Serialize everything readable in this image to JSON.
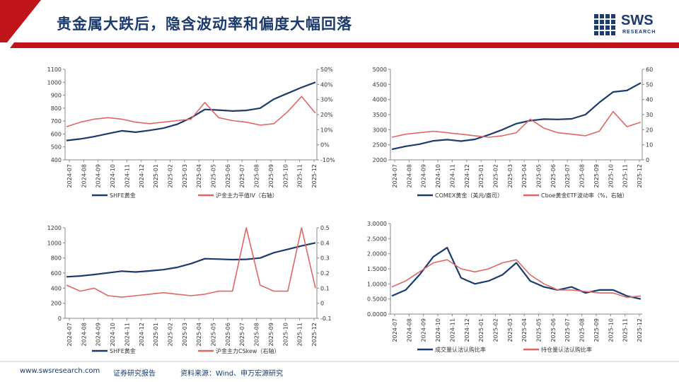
{
  "header": {
    "title": "贵金属大跌后，隐含波动率和偏度大幅回落",
    "logo_text": "SWS",
    "logo_subtext": "RESEARCH",
    "colors": {
      "navy": "#1b3a6e",
      "red": "#c0141b"
    }
  },
  "footer": {
    "website": "www.swsresearch.com",
    "label": "证券研究报告",
    "source": "资料来源：Wind、申万宏源研究"
  },
  "chart_data": [
    {
      "type": "line",
      "x_ticks": [
        "2024-07",
        "2024-08",
        "2024-09",
        "2024-10",
        "2024-11",
        "2024-12",
        "2025-01",
        "2025-02",
        "2025-03",
        "2025-04",
        "2025-05",
        "2025-06",
        "2025-07",
        "2025-08",
        "2025-09",
        "2025-10",
        "2025-11",
        "2025-12"
      ],
      "left_axis": {
        "ticks": [
          "400",
          "500",
          "600",
          "700",
          "800",
          "900",
          "1000",
          "1100"
        ],
        "range": [
          400,
          1100
        ]
      },
      "right_axis": {
        "ticks": [
          "-10%",
          "0%",
          "10%",
          "20%",
          "30%",
          "40%",
          "50%"
        ],
        "range": [
          -10,
          50
        ]
      },
      "series": [
        {
          "name": "SHFE黄金",
          "axis": "left",
          "color": "#1b3a6e",
          "values": [
            550,
            562,
            580,
            603,
            625,
            614,
            628,
            645,
            675,
            725,
            790,
            785,
            778,
            782,
            800,
            870,
            915,
            960,
            1000
          ]
        },
        {
          "name": "沪金主力平值IV（右轴）",
          "axis": "right",
          "color": "#e06666",
          "values": [
            12,
            15,
            17,
            18,
            17,
            15,
            14,
            15,
            16,
            17,
            28,
            18,
            16,
            15,
            13,
            14,
            22,
            32,
            21
          ]
        }
      ]
    },
    {
      "type": "line",
      "x_ticks": [
        "2024-07",
        "2024-08",
        "2024-09",
        "2024-10",
        "2024-11",
        "2024-12",
        "2025-01",
        "2025-02",
        "2025-03",
        "2025-04",
        "2025-05",
        "2025-06",
        "2025-07",
        "2025-08",
        "2025-09",
        "2025-10",
        "2025-11",
        "2025-12"
      ],
      "left_axis": {
        "ticks": [
          "2000",
          "2500",
          "3000",
          "3500",
          "4000",
          "4500",
          "5000"
        ],
        "range": [
          2000,
          5000
        ]
      },
      "right_axis": {
        "ticks": [
          "0",
          "10",
          "20",
          "30",
          "40",
          "50",
          "60"
        ],
        "range": [
          0,
          60
        ]
      },
      "series": [
        {
          "name": "COMEX黄金（美元/盎司）",
          "axis": "left",
          "color": "#1b3a6e",
          "values": [
            2350,
            2450,
            2520,
            2630,
            2670,
            2620,
            2680,
            2830,
            3000,
            3200,
            3300,
            3350,
            3340,
            3360,
            3500,
            3900,
            4250,
            4300,
            4550
          ]
        },
        {
          "name": "Cboe黄金ETF波动率（%，右轴）",
          "axis": "right",
          "color": "#e06666",
          "values": [
            15,
            17,
            18,
            19,
            18,
            17,
            16,
            15,
            16,
            18,
            27,
            21,
            18,
            17,
            16,
            19,
            32,
            22,
            25
          ]
        }
      ]
    },
    {
      "type": "line",
      "x_ticks": [
        "2024-07",
        "2024-08",
        "2024-09",
        "2024-10",
        "2024-11",
        "2024-12",
        "2025-01",
        "2025-02",
        "2025-03",
        "2025-04",
        "2025-05",
        "2025-06",
        "2025-07",
        "2025-08",
        "2025-09",
        "2025-10",
        "2025-11",
        "2025-12"
      ],
      "left_axis": {
        "ticks": [
          "0",
          "200",
          "400",
          "600",
          "800",
          "1000",
          "1200"
        ],
        "range": [
          0,
          1200
        ]
      },
      "right_axis": {
        "ticks": [
          "-0.1",
          "0",
          "0.1",
          "0.2",
          "0.3",
          "0.4",
          "0.5"
        ],
        "range": [
          -0.1,
          0.5
        ]
      },
      "series": [
        {
          "name": "SHFE黄金",
          "axis": "left",
          "color": "#1b3a6e",
          "values": [
            550,
            562,
            580,
            603,
            625,
            614,
            628,
            645,
            675,
            725,
            790,
            785,
            778,
            782,
            800,
            870,
            915,
            960,
            1000
          ]
        },
        {
          "name": "沪金主力CSkew（右轴）",
          "axis": "right",
          "color": "#e06666",
          "values": [
            0.12,
            0.08,
            0.1,
            0.05,
            0.04,
            0.05,
            0.06,
            0.07,
            0.06,
            0.05,
            0.06,
            0.08,
            0.08,
            0.5,
            0.12,
            0.08,
            0.08,
            0.5,
            0.1
          ]
        }
      ]
    },
    {
      "type": "line",
      "x_ticks": [
        "2024-07",
        "2024-08",
        "2024-09",
        "2024-10",
        "2024-11",
        "2024-12",
        "2025-01",
        "2025-02",
        "2025-03",
        "2025-04",
        "2025-05",
        "2025-06",
        "2025-07",
        "2025-08",
        "2025-09",
        "2025-10",
        "2025-11",
        "2025-12"
      ],
      "left_axis": {
        "ticks": [
          "0.0000",
          "0.5000",
          "1.0000",
          "1.5000",
          "2.0000",
          "2.5000",
          "3.0000"
        ],
        "range": [
          0,
          3
        ]
      },
      "series": [
        {
          "name": "成交量认沽认购比率",
          "color": "#1b3a6e",
          "values": [
            0.6,
            0.8,
            1.3,
            1.9,
            2.2,
            1.2,
            1.0,
            1.1,
            1.3,
            1.7,
            1.1,
            0.9,
            0.8,
            0.9,
            0.7,
            0.8,
            0.8,
            0.6,
            0.5
          ]
        },
        {
          "name": "持仓量认沽认购比率",
          "color": "#e06666",
          "values": [
            0.9,
            1.1,
            1.4,
            1.7,
            1.8,
            1.5,
            1.4,
            1.5,
            1.7,
            1.8,
            1.3,
            1.0,
            0.8,
            0.8,
            0.75,
            0.7,
            0.7,
            0.55,
            0.6
          ]
        }
      ]
    }
  ]
}
